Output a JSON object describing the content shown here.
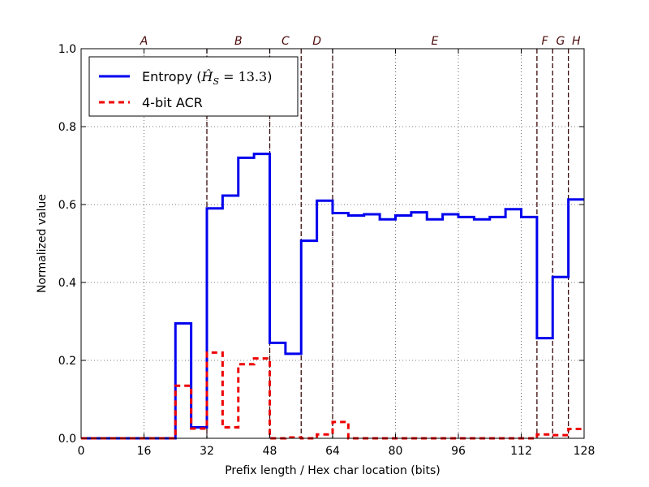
{
  "chart_data": {
    "type": "line",
    "xlabel": "Prefix length / Hex char location (bits)",
    "ylabel": "Normalized value",
    "xlim": [
      0,
      128
    ],
    "ylim": [
      0,
      1.0
    ],
    "xticks": [
      "0",
      "16",
      "32",
      "48",
      "64",
      "80",
      "96",
      "112",
      "128"
    ],
    "yticks": [
      "0.0",
      "0.2",
      "0.4",
      "0.6",
      "0.8",
      "1.0"
    ],
    "grid": true,
    "legend_position": "top-left",
    "regions": [
      {
        "label": "A",
        "start": 0,
        "end": 32
      },
      {
        "label": "B",
        "start": 32,
        "end": 48
      },
      {
        "label": "C",
        "start": 48,
        "end": 56
      },
      {
        "label": "D",
        "start": 56,
        "end": 64
      },
      {
        "label": "E",
        "start": 64,
        "end": 116
      },
      {
        "label": "F",
        "start": 116,
        "end": 120
      },
      {
        "label": "G",
        "start": 120,
        "end": 124
      },
      {
        "label": "H",
        "start": 124,
        "end": 128
      }
    ],
    "boundaries": [
      32,
      48,
      56,
      64,
      116,
      120,
      124
    ],
    "x": [
      0,
      4,
      8,
      12,
      16,
      20,
      24,
      28,
      32,
      36,
      40,
      44,
      48,
      52,
      56,
      60,
      64,
      68,
      72,
      76,
      80,
      84,
      88,
      92,
      96,
      100,
      104,
      108,
      112,
      116,
      120,
      124
    ],
    "series": [
      {
        "name": "Entropy ($\\hat{H}_S = 13.3$)",
        "legend_text": "Entropy (",
        "legend_math": "13.3",
        "color": "#0000ee",
        "style": "solid",
        "values": [
          0.0,
          0.0,
          0.0,
          0.0,
          0.0,
          0.0,
          0.295,
          0.028,
          0.59,
          0.623,
          0.72,
          0.73,
          0.245,
          0.217,
          0.507,
          0.61,
          0.578,
          0.572,
          0.575,
          0.562,
          0.572,
          0.58,
          0.562,
          0.575,
          0.568,
          0.562,
          0.568,
          0.588,
          0.568,
          0.257,
          0.414,
          0.613
        ]
      },
      {
        "name": "4-bit ACR",
        "color": "#ee0000",
        "style": "dashed",
        "values": [
          0.0,
          0.0,
          0.0,
          0.0,
          0.0,
          0.0,
          0.135,
          0.025,
          0.22,
          0.028,
          0.19,
          0.205,
          0.0,
          0.002,
          0.0,
          0.01,
          0.042,
          0.0,
          0.0,
          0.0,
          0.0,
          0.0,
          0.0,
          0.0,
          0.0,
          0.0,
          0.0,
          0.0,
          0.0,
          0.01,
          0.008,
          0.024
        ]
      }
    ]
  }
}
